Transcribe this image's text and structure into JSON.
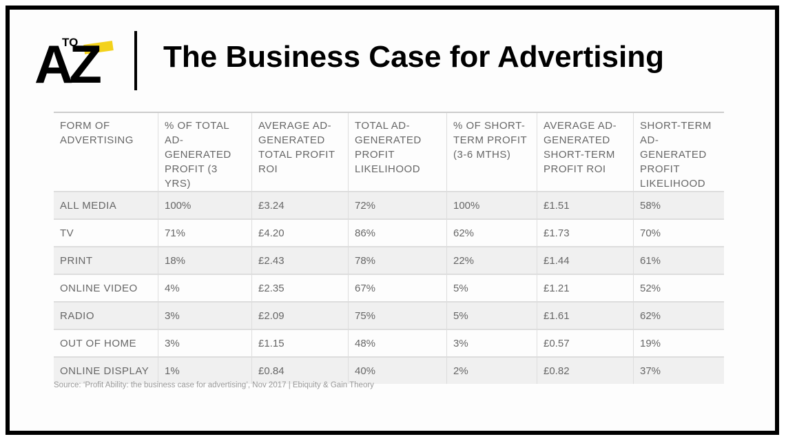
{
  "header": {
    "logo": {
      "small": "TO",
      "large": "AZ"
    },
    "title": "The Business Case for Advertising"
  },
  "table": {
    "columns": [
      "FORM OF ADVERTISING",
      "% OF TOTAL AD-GENERATED PROFIT (3 YRS)",
      "AVERAGE AD-GENERATED TOTAL PROFIT ROI",
      "TOTAL AD-GENERATED PROFIT LIKELIHOOD",
      "% OF SHORT-TERM PROFIT (3-6 MTHS)",
      "AVERAGE AD-GENERATED SHORT-TERM PROFIT ROI",
      "SHORT-TERM AD-GENERATED PROFIT LIKELIHOOD"
    ],
    "rows": [
      [
        "ALL MEDIA",
        "100%",
        "£3.24",
        "72%",
        "100%",
        "£1.51",
        "58%"
      ],
      [
        "TV",
        "71%",
        "£4.20",
        "86%",
        "62%",
        "£1.73",
        "70%"
      ],
      [
        "PRINT",
        "18%",
        "£2.43",
        "78%",
        "22%",
        "£1.44",
        "61%"
      ],
      [
        "ONLINE VIDEO",
        "4%",
        "£2.35",
        "67%",
        "5%",
        "£1.21",
        "52%"
      ],
      [
        "RADIO",
        "3%",
        "£2.09",
        "75%",
        "5%",
        "£1.61",
        "62%"
      ],
      [
        "OUT OF HOME",
        "3%",
        "£1.15",
        "48%",
        "3%",
        "£0.57",
        "19%"
      ],
      [
        "ONLINE DISPLAY",
        "1%",
        "£0.84",
        "40%",
        "2%",
        "£0.82",
        "37%"
      ]
    ]
  },
  "source": "Source: ‘Profit Ability: the business case for advertising’, Nov 2017 | Ebiquity & Gain Theory"
}
